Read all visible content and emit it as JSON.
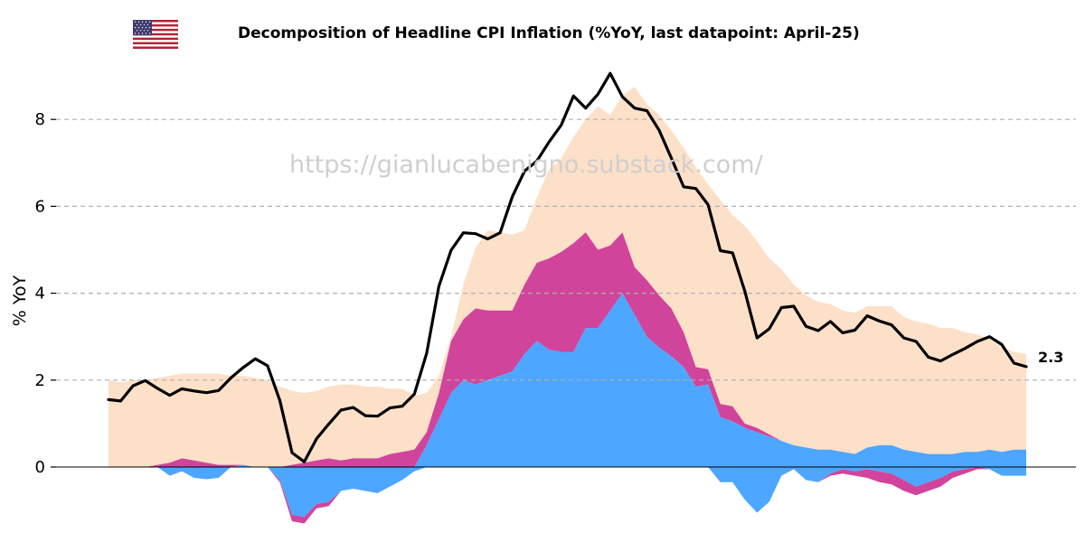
{
  "header": {
    "title": "Decomposition of Headline CPI Inflation (%YoY, last datapoint: April-25)",
    "flag_icon": "us-flag-icon",
    "watermark": "https://gianlucabenigno.substack.com/"
  },
  "colors": {
    "total_line": "#000000",
    "layer_blue": "#4da6ff",
    "layer_magenta": "#d1449b",
    "layer_peach": "#fde0c8",
    "gridline": "#b0b0b0"
  },
  "chart_data": {
    "type": "area",
    "title": "Decomposition of Headline CPI Inflation (%YoY, last datapoint: April-25)",
    "xlabel": "",
    "ylabel": "% YoY",
    "ylim": [
      -1.5,
      9.5
    ],
    "yticks": [
      0,
      2,
      4,
      6,
      8
    ],
    "grid": "horizontal dashed",
    "end_label": "2.3",
    "stack_from_zero": true,
    "series": [
      {
        "name": "",
        "color": "#4da6ff",
        "values": [
          -0.3,
          -0.3,
          0.0,
          0.0,
          -0.05,
          -0.2,
          -0.1,
          -0.25,
          -0.28,
          -0.25,
          0.0,
          0.05,
          0.0,
          0.0,
          -0.3,
          -1.1,
          -1.15,
          -0.85,
          -0.8,
          -0.55,
          -0.5,
          -0.55,
          -0.6,
          -0.45,
          -0.3,
          -0.1,
          0.5,
          1.1,
          1.7,
          2.0,
          1.9,
          2.0,
          2.1,
          2.2,
          2.6,
          2.9,
          2.7,
          2.65,
          2.65,
          3.2,
          3.2,
          3.6,
          4.0,
          3.5,
          3.0,
          2.75,
          2.55,
          2.3,
          1.85,
          1.9,
          1.15,
          1.05,
          0.9,
          0.8,
          0.7,
          0.6,
          0.5,
          0.45,
          0.4,
          0.4,
          0.35,
          0.3,
          0.45,
          0.5,
          0.5,
          0.4,
          0.35,
          0.3,
          0.3,
          0.3,
          0.35,
          0.35,
          0.4,
          0.35,
          0.4,
          0.4
        ],
        "negatives": [
          0,
          0,
          0,
          0,
          0,
          -0.2,
          -0.1,
          -0.25,
          -0.28,
          -0.25,
          0,
          0,
          0,
          0,
          -0.3,
          -1.1,
          -1.15,
          -0.85,
          -0.8,
          -0.55,
          -0.5,
          -0.55,
          -0.6,
          -0.45,
          -0.3,
          -0.1,
          0,
          0,
          0,
          0,
          0,
          0,
          0,
          0,
          0,
          0,
          0,
          0,
          0,
          0,
          0,
          0,
          0,
          0,
          0,
          0,
          0,
          0,
          0,
          0,
          -0.35,
          -0.35,
          -0.75,
          -1.05,
          -0.8,
          -0.2,
          -0.05,
          -0.3,
          -0.35,
          -0.15,
          -0.05,
          -0.1,
          -0.05,
          -0.1,
          -0.15,
          -0.3,
          -0.45,
          -0.35,
          -0.25,
          -0.1,
          -0.05,
          0,
          -0.05,
          -0.2,
          -0.2,
          -0.2
        ]
      },
      {
        "name": "",
        "color": "#d1449b",
        "values": [
          0.0,
          0.0,
          0.0,
          0.0,
          0.05,
          0.1,
          0.2,
          0.15,
          0.1,
          0.05,
          0.05,
          0.0,
          0.0,
          0.0,
          0.0,
          0.05,
          0.1,
          0.15,
          0.2,
          0.15,
          0.2,
          0.2,
          0.2,
          0.3,
          0.35,
          0.4,
          0.3,
          0.6,
          1.2,
          1.4,
          1.75,
          1.6,
          1.5,
          1.4,
          1.6,
          1.8,
          2.1,
          2.3,
          2.5,
          2.2,
          1.8,
          1.5,
          1.4,
          1.1,
          1.3,
          1.2,
          1.1,
          0.8,
          0.45,
          0.35,
          0.3,
          0.35,
          0.1,
          0.1,
          0.05,
          0.0,
          0.0,
          0.0,
          0.0,
          0.0,
          0.0,
          0.0,
          0.0,
          0.0,
          0.0,
          0.0,
          0.0,
          0.0,
          0.0,
          0.0,
          0.0,
          0.0,
          0.0,
          0.0,
          0.0,
          0.0
        ],
        "negatives": [
          0,
          0,
          0,
          0,
          0,
          0,
          0,
          0,
          0,
          0,
          0,
          0,
          0,
          0,
          -0.05,
          -0.15,
          -0.15,
          -0.1,
          -0.1,
          0,
          0,
          0,
          0,
          0,
          0,
          0,
          0,
          0,
          0,
          0,
          0,
          0,
          0,
          0,
          0,
          0,
          0,
          0,
          0,
          0,
          0,
          0,
          0,
          0,
          0,
          0,
          0,
          0,
          0,
          0,
          0,
          0,
          0,
          0,
          0,
          0,
          0,
          0,
          0,
          -0.05,
          -0.1,
          -0.1,
          -0.2,
          -0.25,
          -0.25,
          -0.25,
          -0.2,
          -0.2,
          -0.2,
          -0.15,
          -0.1,
          -0.05,
          0,
          0,
          0,
          0
        ]
      },
      {
        "name": "",
        "color": "#fde0c8",
        "total_top": [
          2.0,
          1.95,
          2.0,
          2.0,
          2.05,
          2.1,
          2.15,
          2.15,
          2.15,
          2.15,
          2.1,
          2.1,
          2.05,
          2.0,
          1.85,
          1.75,
          1.7,
          1.75,
          1.85,
          1.9,
          1.9,
          1.85,
          1.85,
          1.8,
          1.8,
          1.65,
          1.7,
          2.1,
          3.0,
          4.2,
          5.05,
          5.45,
          5.4,
          5.35,
          5.45,
          6.2,
          6.85,
          7.1,
          7.6,
          8.0,
          8.3,
          8.1,
          8.55,
          8.75,
          8.35,
          8.1,
          7.75,
          7.35,
          6.9,
          6.5,
          6.15,
          5.8,
          5.55,
          5.2,
          4.8,
          4.55,
          4.2,
          3.95,
          3.8,
          3.75,
          3.6,
          3.55,
          3.7,
          3.7,
          3.7,
          3.45,
          3.35,
          3.3,
          3.2,
          3.2,
          3.1,
          3.05,
          2.95,
          2.75,
          2.65,
          2.6
        ]
      }
    ],
    "total_line": {
      "name": "",
      "color": "#000000",
      "values": [
        1.55,
        1.52,
        1.87,
        1.99,
        1.81,
        1.65,
        1.8,
        1.75,
        1.71,
        1.76,
        2.05,
        2.29,
        2.49,
        2.33,
        1.53,
        0.33,
        0.12,
        0.65,
        0.99,
        1.31,
        1.37,
        1.18,
        1.17,
        1.36,
        1.4,
        1.68,
        2.62,
        4.16,
        4.99,
        5.39,
        5.37,
        5.25,
        5.39,
        6.22,
        6.81,
        7.04,
        7.48,
        7.87,
        8.54,
        8.26,
        8.58,
        9.06,
        8.52,
        8.26,
        8.2,
        7.75,
        7.11,
        6.45,
        6.41,
        6.04,
        4.98,
        4.93,
        4.05,
        2.97,
        3.18,
        3.67,
        3.7,
        3.24,
        3.14,
        3.35,
        3.09,
        3.15,
        3.48,
        3.36,
        3.27,
        2.97,
        2.89,
        2.53,
        2.44,
        2.59,
        2.73,
        2.89,
        3.0,
        2.82,
        2.39,
        2.31
      ]
    }
  }
}
